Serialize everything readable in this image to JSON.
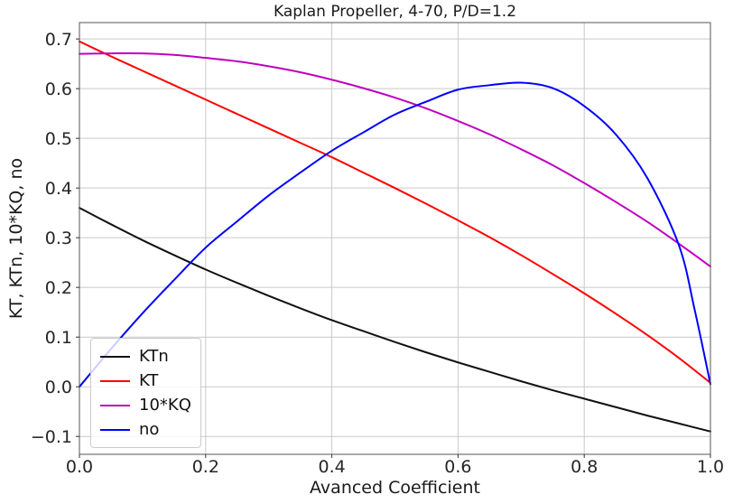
{
  "figure": {
    "background": "#ffffff"
  },
  "chart_data": {
    "type": "line",
    "title": "Kaplan Propeller, 4-70, P/D=1.2",
    "xlabel": "Avanced Coefficient",
    "ylabel": "KT, KTn, 10*KQ, no",
    "xlim": [
      0.0,
      1.0
    ],
    "ylim": [
      -0.136,
      0.733
    ],
    "grid": true,
    "grid_color": "#c9c9c9",
    "spine_color": "#555555",
    "tick_color": "#333333",
    "text_color": "#262626",
    "line_width": 2,
    "x_ticks": {
      "values": [
        0.0,
        0.2,
        0.4,
        0.6,
        0.8,
        1.0
      ],
      "labels": [
        "0.0",
        "0.2",
        "0.4",
        "0.6",
        "0.8",
        "1.0"
      ]
    },
    "y_ticks": {
      "values": [
        -0.1,
        0.0,
        0.1,
        0.2,
        0.3,
        0.4,
        0.5,
        0.6,
        0.7
      ],
      "labels": [
        "−0.1",
        "0.0",
        "0.1",
        "0.2",
        "0.3",
        "0.4",
        "0.5",
        "0.6",
        "0.7"
      ]
    },
    "legend": {
      "position": "lower left"
    },
    "series": [
      {
        "name": "KTn",
        "color": "#111111",
        "points": [
          [
            0,
            0.36
          ],
          [
            0.05,
            0.327
          ],
          [
            0.1,
            0.295
          ],
          [
            0.15,
            0.265
          ],
          [
            0.2,
            0.236
          ],
          [
            0.25,
            0.209
          ],
          [
            0.3,
            0.183
          ],
          [
            0.35,
            0.158
          ],
          [
            0.4,
            0.134
          ],
          [
            0.45,
            0.112
          ],
          [
            0.5,
            0.09
          ],
          [
            0.55,
            0.069
          ],
          [
            0.6,
            0.049
          ],
          [
            0.65,
            0.03
          ],
          [
            0.7,
            0.011
          ],
          [
            0.75,
            -0.007
          ],
          [
            0.8,
            -0.024
          ],
          [
            0.85,
            -0.041
          ],
          [
            0.9,
            -0.058
          ],
          [
            0.95,
            -0.074
          ],
          [
            1.0,
            -0.09
          ]
        ]
      },
      {
        "name": "KT",
        "color": "#ff0000",
        "points": [
          [
            0,
            0.695
          ],
          [
            0.05,
            0.665
          ],
          [
            0.1,
            0.636
          ],
          [
            0.15,
            0.607
          ],
          [
            0.2,
            0.578
          ],
          [
            0.25,
            0.549
          ],
          [
            0.3,
            0.52
          ],
          [
            0.35,
            0.491
          ],
          [
            0.4,
            0.462
          ],
          [
            0.45,
            0.431
          ],
          [
            0.5,
            0.4
          ],
          [
            0.55,
            0.368
          ],
          [
            0.6,
            0.335
          ],
          [
            0.65,
            0.301
          ],
          [
            0.7,
            0.265
          ],
          [
            0.75,
            0.227
          ],
          [
            0.8,
            0.188
          ],
          [
            0.85,
            0.147
          ],
          [
            0.9,
            0.104
          ],
          [
            0.95,
            0.058
          ],
          [
            1.0,
            0.008
          ]
        ]
      },
      {
        "name": "10*KQ",
        "color": "#bf00bf",
        "points": [
          [
            0,
            0.67
          ],
          [
            0.05,
            0.671
          ],
          [
            0.1,
            0.671
          ],
          [
            0.15,
            0.668
          ],
          [
            0.2,
            0.662
          ],
          [
            0.25,
            0.655
          ],
          [
            0.3,
            0.645
          ],
          [
            0.35,
            0.633
          ],
          [
            0.4,
            0.618
          ],
          [
            0.45,
            0.601
          ],
          [
            0.5,
            0.582
          ],
          [
            0.55,
            0.56
          ],
          [
            0.6,
            0.535
          ],
          [
            0.65,
            0.508
          ],
          [
            0.7,
            0.478
          ],
          [
            0.75,
            0.446
          ],
          [
            0.8,
            0.41
          ],
          [
            0.85,
            0.372
          ],
          [
            0.9,
            0.332
          ],
          [
            0.95,
            0.288
          ],
          [
            1.0,
            0.242
          ]
        ]
      },
      {
        "name": "no",
        "color": "#0000ff",
        "points": [
          [
            0,
            0.0
          ],
          [
            0.05,
            0.076
          ],
          [
            0.1,
            0.148
          ],
          [
            0.15,
            0.215
          ],
          [
            0.2,
            0.28
          ],
          [
            0.25,
            0.333
          ],
          [
            0.3,
            0.385
          ],
          [
            0.35,
            0.431
          ],
          [
            0.4,
            0.475
          ],
          [
            0.45,
            0.512
          ],
          [
            0.5,
            0.548
          ],
          [
            0.55,
            0.574
          ],
          [
            0.6,
            0.598
          ],
          [
            0.65,
            0.607
          ],
          [
            0.7,
            0.612
          ],
          [
            0.75,
            0.601
          ],
          [
            0.8,
            0.565
          ],
          [
            0.85,
            0.508
          ],
          [
            0.9,
            0.42
          ],
          [
            0.95,
            0.285
          ],
          [
            0.975,
            0.155
          ],
          [
            1.0,
            0.005
          ]
        ]
      }
    ]
  }
}
